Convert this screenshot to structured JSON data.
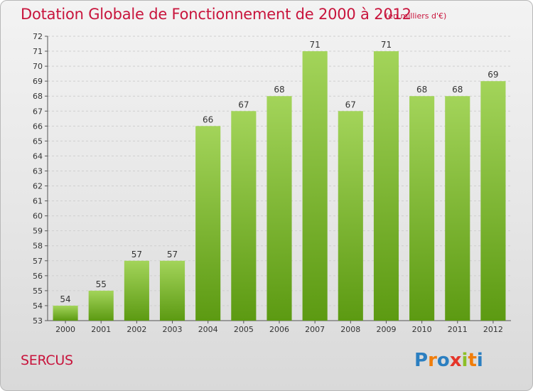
{
  "header": {
    "title": "Dotation Globale de Fonctionnement de 2000 à 2012",
    "unit": "(en milliers d'€)"
  },
  "footer": {
    "commune": "SERCUS",
    "logo_text": "Proxiti",
    "logo_letters": [
      "P",
      "r",
      "o",
      "x",
      "i",
      "t",
      "i"
    ],
    "logo_colors": [
      "#2b7fc1",
      "#f07d0a",
      "#2b7fc1",
      "#e5352a",
      "#8cbf26",
      "#f07d0a",
      "#2b7fc1"
    ]
  },
  "colors": {
    "bar_top": "#a3d45a",
    "bar_bottom": "#5c9a12",
    "axis": "#555555",
    "grid": "#cfcfcf",
    "title": "#c8143c"
  },
  "chart_data": {
    "type": "bar",
    "title": "Dotation Globale de Fonctionnement de 2000 à 2012",
    "categories": [
      "2000",
      "2001",
      "2002",
      "2003",
      "2004",
      "2005",
      "2006",
      "2007",
      "2008",
      "2009",
      "2010",
      "2011",
      "2012"
    ],
    "values": [
      54,
      55,
      57,
      57,
      66,
      67,
      68,
      71,
      67,
      71,
      68,
      68,
      69
    ],
    "ylim": [
      53,
      72
    ],
    "yticks": [
      53,
      54,
      55,
      56,
      57,
      58,
      59,
      60,
      61,
      62,
      63,
      64,
      65,
      66,
      67,
      68,
      69,
      70,
      71,
      72
    ],
    "xlabel": "",
    "ylabel": "",
    "grid": true,
    "legend": "none"
  }
}
